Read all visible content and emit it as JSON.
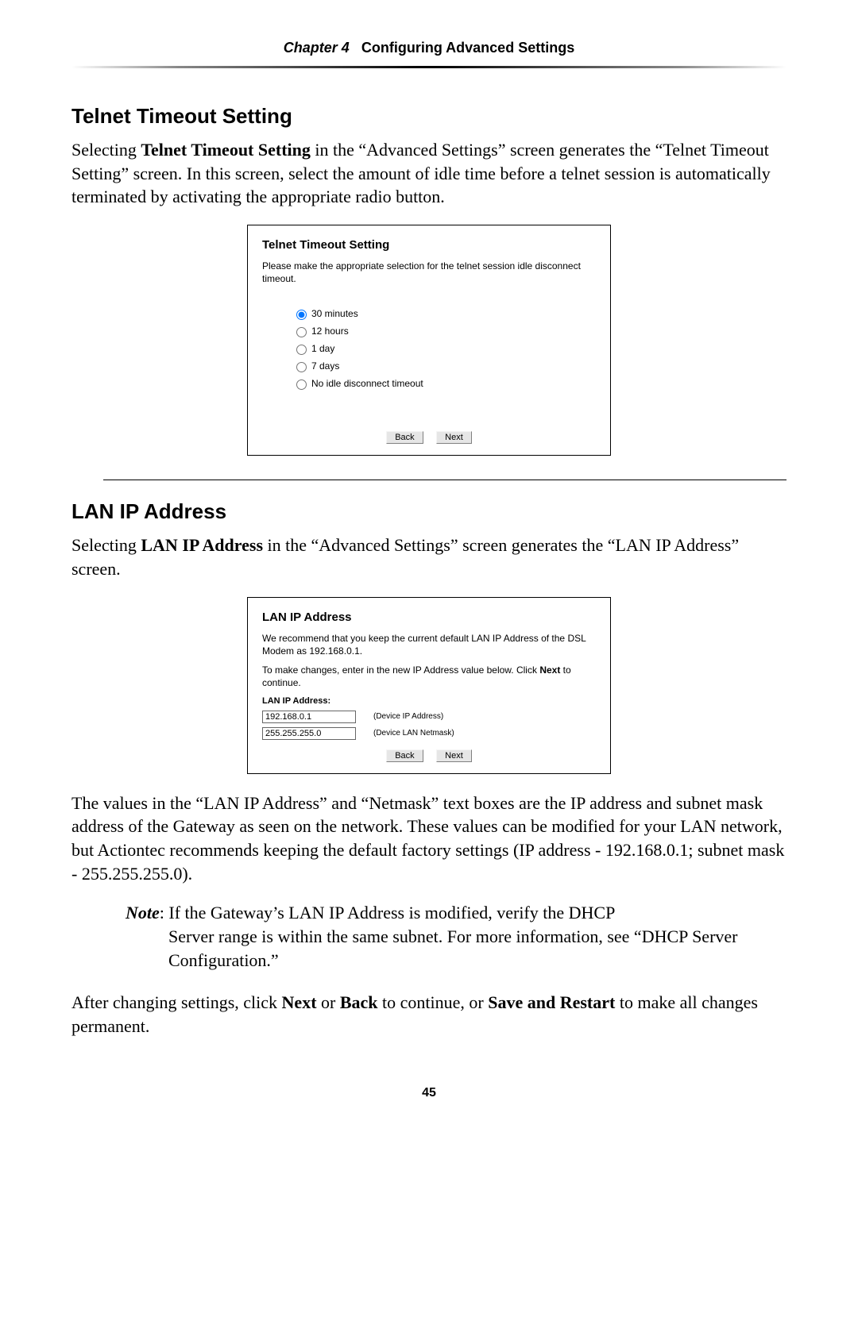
{
  "header": {
    "chapter_label": "Chapter 4",
    "chapter_title": "Configuring Advanced Settings"
  },
  "section1": {
    "heading": "Telnet Timeout Setting",
    "para1_pre": "Selecting ",
    "para1_bold": "Telnet Timeout Setting",
    "para1_post": " in the “Advanced Settings” screen generates the “Telnet Timeout Setting” screen. In this screen, select the amount of idle time before a telnet session is automatically terminated by activating the appropriate radio button."
  },
  "shot1": {
    "title": "Telnet Timeout Setting",
    "desc": "Please make the appropriate selection for the telnet session idle disconnect timeout.",
    "options": [
      "30 minutes",
      "12 hours",
      "1 day",
      "7 days",
      "No idle disconnect timeout"
    ],
    "selected_index": 0,
    "back_label": "Back",
    "next_label": "Next"
  },
  "section2": {
    "heading": "LAN IP Address",
    "para1_pre": "Selecting ",
    "para1_bold": "LAN IP Address",
    "para1_mid": " in the “Advanced Settings” screen generates the “",
    "para1_sc": "LAN IP",
    "para1_post": " Address” screen."
  },
  "shot2": {
    "title": "LAN IP Address",
    "desc1": "We recommend that you keep the current default LAN IP Address of the DSL Modem as 192.168.0.1.",
    "desc2_pre": "To make changes, enter in the new IP Address value below. Click ",
    "desc2_bold": "Next",
    "desc2_post": " to continue.",
    "label": "LAN IP Address:",
    "ip_value": "192.168.0.1",
    "ip_caption": "(Device IP Address)",
    "mask_value": "255.255.255.0",
    "mask_caption": "(Device LAN Netmask)",
    "back_label": "Back",
    "next_label": "Next"
  },
  "para_after_shot2_a": "The values in the “",
  "para_after_shot2_sc1": "LAN IP",
  "para_after_shot2_b": " Address” and “Netmask” text boxes are the ",
  "para_after_shot2_sc2": "IP",
  "para_after_shot2_c": " address and subnet mask address of the Gateway as seen on the network. These values can be modified for your ",
  "para_after_shot2_sc3": "LAN",
  "para_after_shot2_d": " network, but Actiontec recommends keeping the default factory settings (",
  "para_after_shot2_sc4": "IP",
  "para_after_shot2_e": " address - 192.168.0.1; subnet mask - 255.255.255.0).",
  "note": {
    "label": "Note",
    "text_a": ": If the Gateway’s ",
    "sc1": "LAN IP",
    "text_b": " Address is modified, verify the ",
    "sc2": "DHCP",
    "text_c": " Server range is within the same subnet. For more information, see “",
    "sc3": "DHCP",
    "text_d": " Server Configuration.”"
  },
  "para_last_a": "After changing settings, click ",
  "para_last_b1": "Next",
  "para_last_b": " or ",
  "para_last_b2": "Back",
  "para_last_c": " to continue, or ",
  "para_last_b3": "Save and Restart",
  "para_last_d": " to make all changes permanent.",
  "page_number": "45"
}
